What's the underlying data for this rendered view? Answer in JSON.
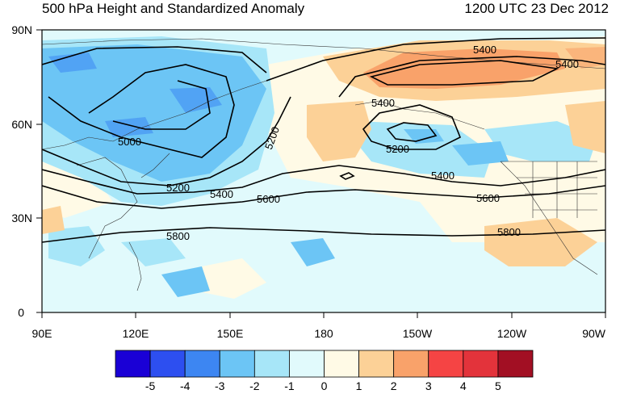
{
  "title": "500 hPa Height and Standardized Anomaly",
  "timestamp": "1200 UTC 23 Dec 2012",
  "lat_ticks": [
    "90N",
    "60N",
    "30N",
    "0"
  ],
  "lon_ticks": [
    "90E",
    "120E",
    "150E",
    "180",
    "150W",
    "120W",
    "90W"
  ],
  "contour_labels": [
    "5400",
    "5400",
    "5400",
    "5200",
    "5000",
    "5200",
    "5400",
    "5600",
    "5200",
    "5400",
    "5600",
    "5800",
    "5800"
  ],
  "colorbar": {
    "labels": [
      "-5",
      "-4",
      "-3",
      "-2",
      "-1",
      "0",
      "1",
      "2",
      "3",
      "4",
      "5"
    ],
    "colors": [
      "#1a00d6",
      "#2d4ff0",
      "#3d86f2",
      "#6cc5f5",
      "#a7e6f8",
      "#e1fafc",
      "#fffae6",
      "#fcd197",
      "#f9a26a",
      "#f54444",
      "#e3333b",
      "#a20f23"
    ]
  },
  "colors": {
    "neg_weak": "#a7e6f8",
    "neg_mid": "#6cc5f5",
    "neg_strong": "#3d86f2",
    "neutral_neg": "#e1fafc",
    "neutral_pos": "#fffae6",
    "pos_weak": "#fcd197",
    "pos_mid": "#f9a26a"
  }
}
